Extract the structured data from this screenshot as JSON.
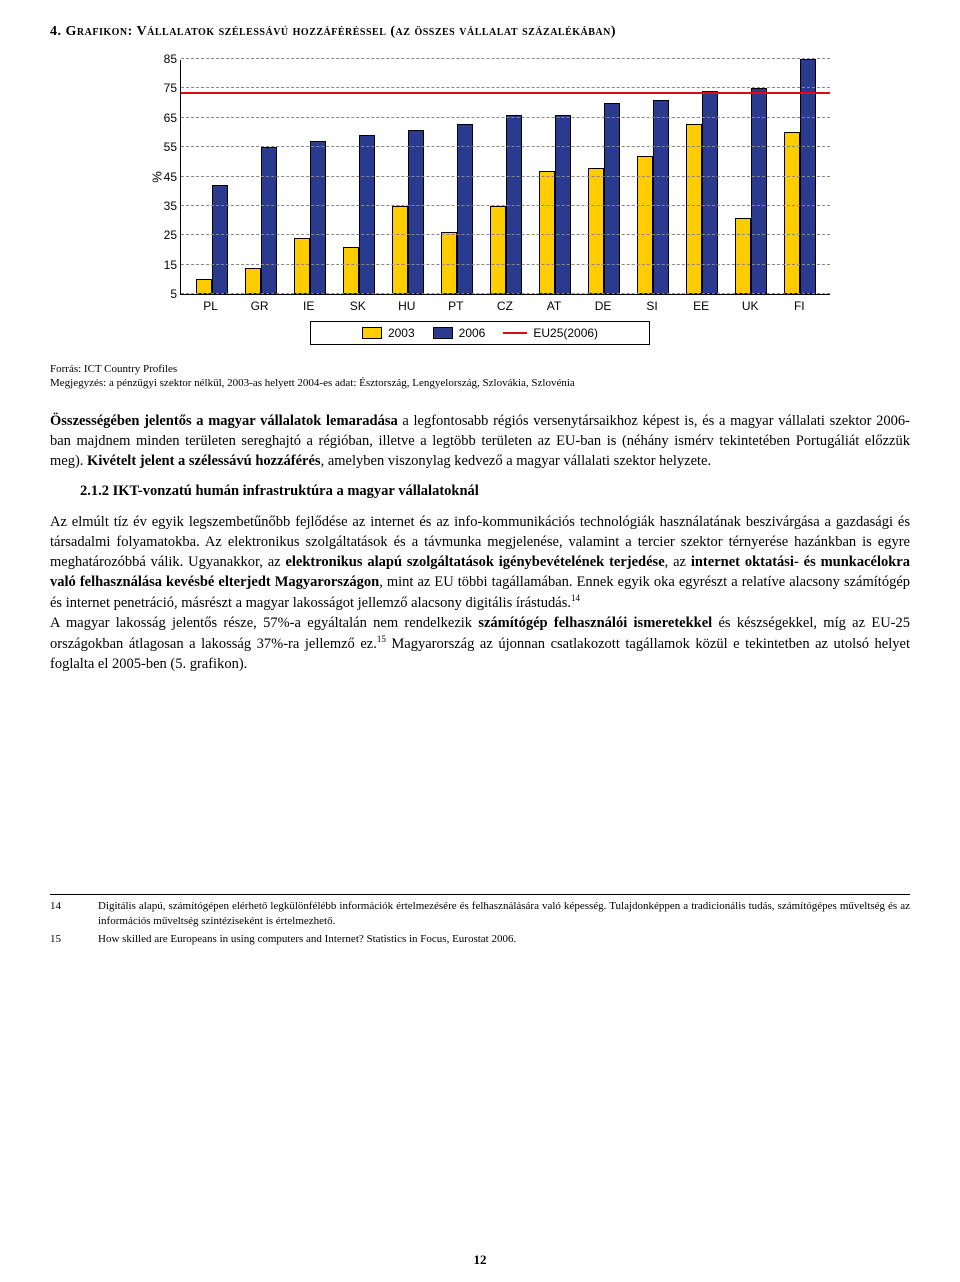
{
  "title": "4. Grafikon: Vállalatok szélessávú hozzáféréssel (az összes vállalat százalékában)",
  "chart": {
    "type": "bar",
    "y_label": "%",
    "y_min": 5,
    "y_max": 85,
    "y_tick_step": 10,
    "y_ticks": [
      5,
      15,
      25,
      35,
      45,
      55,
      65,
      75,
      85
    ],
    "ref_line_value": 73,
    "ref_line_color": "#e30613",
    "grid_color": "#888888",
    "background": "#ffffff",
    "series": [
      {
        "key": "2003",
        "color": "#ffcc00"
      },
      {
        "key": "2006",
        "color": "#2a3a8f"
      },
      {
        "key": "EU25(2006)",
        "color": "#e30613",
        "style": "line"
      }
    ],
    "categories": [
      "PL",
      "GR",
      "IE",
      "SK",
      "HU",
      "PT",
      "CZ",
      "AT",
      "DE",
      "SI",
      "EE",
      "UK",
      "FI"
    ],
    "values_2003": [
      10,
      14,
      24,
      21,
      35,
      26,
      35,
      47,
      48,
      52,
      63,
      31,
      60
    ],
    "values_2006": [
      42,
      55,
      57,
      59,
      61,
      63,
      66,
      66,
      70,
      71,
      74,
      75,
      85
    ]
  },
  "source_label": "Forrás: ICT Country Profiles",
  "note_label": "Megjegyzés: a pénzügyi szektor nélkül, 2003-as helyett 2004-es adat: Észtország, Lengyelország, Szlovákia, Szlovénia",
  "para1_a": "Összességében jelentős a magyar vállalatok lemaradása",
  "para1_b": " a legfontosabb régiós versenytársaikhoz képest is, és a magyar vállalati szektor 2006-ban majdnem minden területen sereghajtó a régióban, illetve a legtöbb területen az EU-ban is (néhány ismérv tekintetében Portugáliát előzzük meg). ",
  "para1_c": "Kivételt jelent a szélessávú hozzáférés",
  "para1_d": ", amelyben viszonylag kedvező a magyar vállalati szektor helyzete.",
  "subhead": "2.1.2 IKT-vonzatú humán infrastruktúra a magyar vállalatoknál",
  "para2_a": "Az elmúlt tíz év egyik legszembetűnőbb fejlődése az internet és az info-kommunikációs technológiák használatának beszivárgása a gazdasági és társadalmi folyamatokba. Az elektronikus szolgáltatások és a távmunka megjelenése, valamint a tercier szektor térnyerése hazánkban is egyre meghatározóbbá válik. Ugyanakkor, az ",
  "para2_b": "elektronikus alapú szolgáltatások igénybevételének terjedése",
  "para2_c": ", az ",
  "para2_d": "internet oktatási- és munkacélokra való felhasználása kevésbé elterjedt Magyarországon",
  "para2_e": ", mint az EU többi tagállamában. Ennek egyik oka egyrészt a relatíve alacsony számítógép és internet penetráció, másrészt a magyar lakosságot jellemző alacsony digitális írástudás.",
  "para2_sup1": "14",
  "para3_a": "A magyar lakosság jelentős része, 57%-a egyáltalán nem rendelkezik ",
  "para3_b": "számítógép felhasználói ismeretekkel",
  "para3_c": " és készségekkel, míg az EU-25 országokban átlagosan a lakosság 37%-ra jellemző ez.",
  "para3_sup2": "15",
  "para3_d": " Magyarország az újonnan csatlakozott tagállamok közül e tekintetben az utolsó helyet foglalta el 2005-ben (5. grafikon).",
  "footnotes": [
    {
      "num": "14",
      "text": "Digitális alapú, számítógépen elérhető legkülönfélébb információk értelmezésére és felhasználására való képesség. Tulajdonképpen a tradicionális tudás, számítógépes műveltség és az információs műveltség szintéziseként is értelmezhető."
    },
    {
      "num": "15",
      "text": "How skilled are Europeans in using computers and Internet?  Statistics in Focus, Eurostat 2006."
    }
  ],
  "page": "12",
  "legend": {
    "l1": "2003",
    "l2": "2006",
    "l3": "EU25(2006)"
  }
}
